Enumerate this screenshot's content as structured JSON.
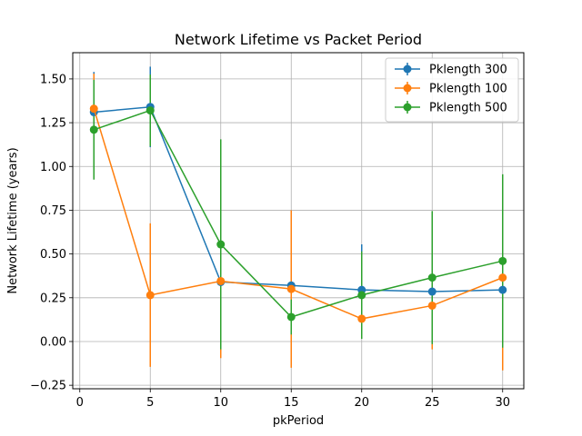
{
  "chart_data": {
    "type": "line",
    "title": "Network Lifetime vs Packet Period",
    "xlabel": "pkPeriod",
    "ylabel": "Network Lifetime (years)",
    "xlim": [
      -0.5,
      31.5
    ],
    "ylim": [
      -0.27,
      1.65
    ],
    "xticks": [
      0,
      5,
      10,
      15,
      20,
      25,
      30
    ],
    "yticks": [
      -0.25,
      0.0,
      0.25,
      0.5,
      0.75,
      1.0,
      1.25,
      1.5
    ],
    "ytick_labels": [
      "−0.25",
      "0.00",
      "0.25",
      "0.50",
      "0.75",
      "1.00",
      "1.25",
      "1.50"
    ],
    "grid": true,
    "legend_position": "top-right",
    "x": [
      1,
      5,
      10,
      15,
      20,
      25,
      30
    ],
    "series": [
      {
        "name": "Pklength 300",
        "color": "#1f77b4",
        "values": [
          1.31,
          1.34,
          0.34,
          0.32,
          0.295,
          0.285,
          0.295
        ],
        "errors": [
          0.23,
          0.23,
          0.0,
          0.0,
          0.26,
          0.0,
          0.0
        ]
      },
      {
        "name": "Pklength 100",
        "color": "#ff7f0e",
        "values": [
          1.33,
          0.265,
          0.345,
          0.3,
          0.13,
          0.205,
          0.365
        ],
        "errors": [
          0.2,
          0.41,
          0.44,
          0.45,
          0.0,
          0.25,
          0.53
        ]
      },
      {
        "name": "Pklength 500",
        "color": "#2ca02c",
        "values": [
          1.21,
          1.32,
          0.555,
          0.14,
          0.265,
          0.365,
          0.46
        ],
        "errors": [
          0.285,
          0.205,
          0.6,
          0.1,
          0.25,
          0.38,
          0.495
        ]
      }
    ]
  }
}
